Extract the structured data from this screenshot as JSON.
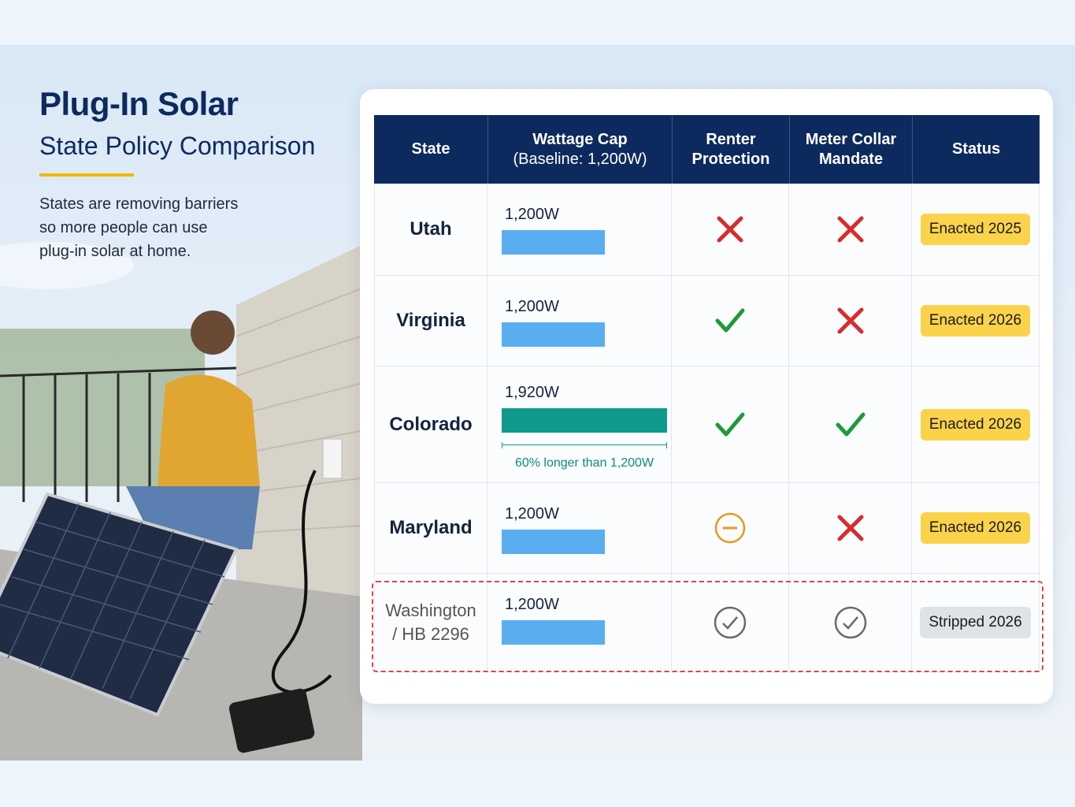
{
  "header": {
    "title": "Plug-In Solar",
    "subtitle": "State Policy Comparison",
    "description": [
      "States are removing barriers",
      "so more people can use",
      "plug-in solar at home."
    ]
  },
  "table": {
    "columns": [
      "State",
      {
        "title": "Wattage Cap",
        "note": "(Baseline: 1,200W)"
      },
      "Renter Protection",
      "Meter Collar Mandate",
      "Status"
    ],
    "rows": [
      {
        "state": "Utah",
        "wattage": {
          "value": 1200,
          "label": "1,200W"
        },
        "bar_color": "#5aaef0",
        "renter_protection": "cross",
        "meter_collar_mandate": "cross",
        "status": "Enacted 2025",
        "status_style": "yellow"
      },
      {
        "state": "Virginia",
        "wattage": {
          "value": 1200,
          "label": "1,200W"
        },
        "bar_color": "#5aaef0",
        "renter_protection": "check",
        "meter_collar_mandate": "cross",
        "status": "Enacted 2026",
        "status_style": "yellow"
      },
      {
        "state": "Colorado",
        "wattage": {
          "value": 1920,
          "label": "1,920W"
        },
        "bar_color": "#0f9a8c",
        "note": "60% longer than 1,200W",
        "renter_protection": "check",
        "meter_collar_mandate": "check",
        "status": "Enacted 2026",
        "status_style": "yellow"
      },
      {
        "state": "Maryland",
        "wattage": {
          "value": 1200,
          "label": "1,200W"
        },
        "bar_color": "#5aaef0",
        "renter_protection": "minus-circle",
        "meter_collar_mandate": "cross",
        "status": "Enacted 2026",
        "status_style": "yellow"
      },
      {
        "state": "Washington / HB 2296",
        "wattage": {
          "value": 1200,
          "label": "1,200W"
        },
        "bar_color": "#5aaef0",
        "renter_protection": "check-circle",
        "meter_collar_mandate": "check-circle",
        "status": "Stripped 2026",
        "status_style": "gray",
        "highlight": true
      }
    ]
  }
}
